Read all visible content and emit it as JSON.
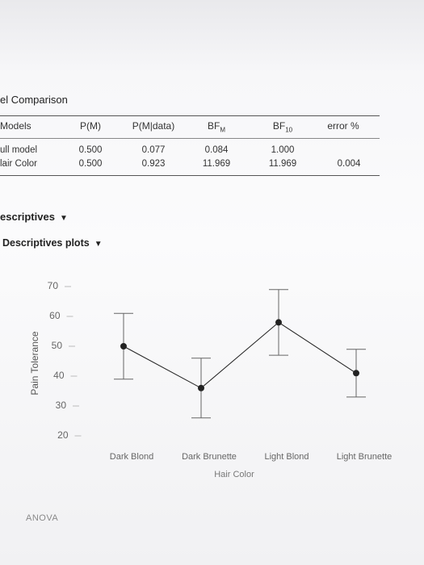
{
  "table": {
    "title": "el Comparison",
    "headers": [
      {
        "text": "Models"
      },
      {
        "text": "P(M)"
      },
      {
        "text": "P(M|data)"
      },
      {
        "text": "BF",
        "sub": "M"
      },
      {
        "text": "BF",
        "sub": "10"
      },
      {
        "text": "error %"
      }
    ],
    "rows": [
      [
        "ull model",
        "0.500",
        "0.077",
        "0.084",
        "1.000"
      ],
      [
        "lair Color",
        "0.500",
        "0.923",
        "11.969",
        "11.969",
        "0.004"
      ]
    ]
  },
  "sections": [
    "escriptives",
    "Descriptives plots",
    "ANOVA"
  ],
  "chart_data": {
    "type": "errorbar",
    "y_label": "Pain Tolerance",
    "x_label": "Hair Color",
    "categories": [
      "Dark Blond",
      "Dark Brunette",
      "Light Blond",
      "Light Brunette"
    ],
    "values": [
      50,
      36,
      58,
      41
    ],
    "errors": [
      11,
      10,
      11,
      8
    ],
    "color": "#222222",
    "ylim": [
      20,
      70
    ],
    "yticks": [
      20,
      30,
      40,
      50,
      60,
      70
    ],
    "grid": false
  }
}
